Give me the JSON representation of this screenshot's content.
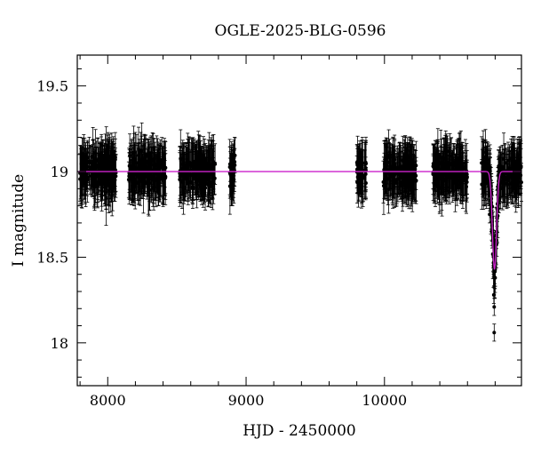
{
  "chart_data": {
    "type": "scatter",
    "title": "OGLE-2025-BLG-0596",
    "xlabel": "HJD - 2450000",
    "ylabel": "I magnitude",
    "xlim": [
      7780,
      10990
    ],
    "ylim": [
      19.68,
      17.75
    ],
    "y_inverted": true,
    "x_ticks": [
      8000,
      9000,
      10000
    ],
    "y_ticks": [
      18,
      18.5,
      19,
      19.5
    ],
    "y_tick_labels": [
      "18",
      "18.5",
      "19",
      "19.5"
    ],
    "grid": false,
    "series": [
      {
        "kind": "points-with-errorbars",
        "color": "#000000",
        "baseline_mag": 19.0,
        "typical_error": 0.13,
        "observing_seasons": [
          {
            "x_start": 7800,
            "x_end": 8060
          },
          {
            "x_start": 8150,
            "x_end": 8420
          },
          {
            "x_start": 8520,
            "x_end": 8780
          },
          {
            "x_start": 8880,
            "x_end": 8920
          },
          {
            "x_start": 9800,
            "x_end": 9870
          },
          {
            "x_start": 9990,
            "x_end": 10230
          },
          {
            "x_start": 10350,
            "x_end": 10600
          },
          {
            "x_start": 10700,
            "x_end": 10990
          }
        ],
        "highlighted_points": [
          {
            "x": 10793,
            "y": 18.06
          },
          {
            "x": 10793,
            "y": 18.21
          },
          {
            "x": 10790,
            "y": 18.28
          },
          {
            "x": 10800,
            "y": 18.38
          },
          {
            "x": 10788,
            "y": 18.45
          },
          {
            "x": 10797,
            "y": 18.5
          },
          {
            "x": 10810,
            "y": 18.6
          },
          {
            "x": 10775,
            "y": 18.65
          },
          {
            "x": 10760,
            "y": 18.75
          }
        ]
      },
      {
        "kind": "model-curve",
        "color": "#cc22cc",
        "baseline": 19.0,
        "peak_x": 10795,
        "peak_y": 18.43,
        "width_days": 15
      }
    ]
  }
}
